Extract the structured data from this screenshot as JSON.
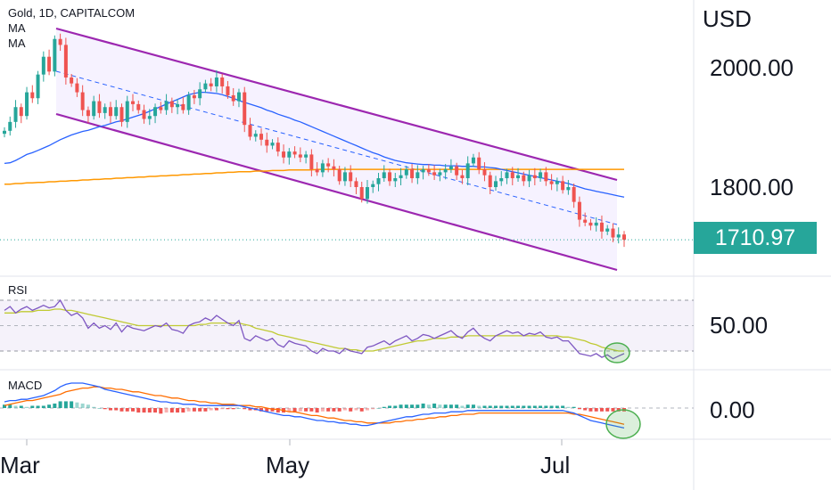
{
  "header": {
    "symbol_line": "Gold, 1D, CAPITALCOM",
    "ma1_label": "MA",
    "ma2_label": "MA"
  },
  "price_axis": {
    "currency": "USD",
    "ticks": [
      "2000.00",
      "1800.00"
    ],
    "last_price": "1710.97"
  },
  "rsi_panel": {
    "label": "RSI",
    "tick": "50.00"
  },
  "macd_panel": {
    "label": "MACD",
    "tick": "0.00"
  },
  "time_axis": {
    "months": [
      "Mar",
      "May",
      "Jul"
    ]
  },
  "colors": {
    "up": "#26a69a",
    "down": "#ef5350",
    "channel": "#9c27b0",
    "ma_fast": "#2962ff",
    "ma_slow": "#ff9800",
    "rsi_line": "#7e57c2",
    "rsi_ma": "#c0ca33",
    "macd_line": "#2962ff",
    "signal_line": "#ff6d00",
    "highlight": "#4caf50",
    "price_badge": "#26a69a"
  },
  "chart_data": [
    {
      "type": "candlestick",
      "title": "Gold, 1D, CAPITALCOM",
      "ylabel": "USD",
      "ylim": [
        1665,
        2085
      ],
      "x_ticks": [
        "Mar",
        "May",
        "Jul"
      ],
      "closes": [
        1895,
        1910,
        1935,
        1920,
        1960,
        1950,
        1990,
        2020,
        1995,
        2050,
        2040,
        1985,
        1975,
        1960,
        1930,
        1920,
        1945,
        1925,
        1935,
        1920,
        1935,
        1910,
        1945,
        1940,
        1930,
        1915,
        1920,
        1935,
        1930,
        1945,
        1935,
        1940,
        1930,
        1955,
        1950,
        1965,
        1975,
        1970,
        1985,
        1970,
        1955,
        1945,
        1960,
        1905,
        1885,
        1890,
        1880,
        1870,
        1875,
        1860,
        1850,
        1860,
        1855,
        1850,
        1855,
        1830,
        1825,
        1840,
        1835,
        1830,
        1810,
        1825,
        1810,
        1800,
        1780,
        1800,
        1805,
        1815,
        1825,
        1810,
        1815,
        1820,
        1830,
        1815,
        1825,
        1830,
        1825,
        1820,
        1825,
        1830,
        1835,
        1820,
        1815,
        1840,
        1850,
        1830,
        1820,
        1800,
        1810,
        1815,
        1825,
        1815,
        1820,
        1810,
        1820,
        1815,
        1825,
        1810,
        1805,
        1810,
        1795,
        1800,
        1775,
        1745,
        1740,
        1735,
        1740,
        1725,
        1730,
        1715,
        1720,
        1711
      ],
      "series": [
        {
          "values": [
            1840,
            1841,
            1845,
            1850,
            1855,
            1858,
            1862,
            1866,
            1870,
            1875,
            1880,
            1884,
            1888,
            1891,
            1894,
            1896,
            1899,
            1902,
            1904,
            1907,
            1910,
            1912,
            1915,
            1918,
            1921,
            1924,
            1928,
            1932,
            1936,
            1940,
            1944,
            1948,
            1952,
            1956,
            1958,
            1960,
            1960,
            1959,
            1958,
            1956,
            1953,
            1950,
            1946,
            1943,
            1940,
            1937,
            1934,
            1930,
            1927,
            1923,
            1920,
            1917,
            1913,
            1910,
            1906,
            1902,
            1898,
            1894,
            1890,
            1886,
            1882,
            1878,
            1874,
            1870,
            1866,
            1862,
            1858,
            1855,
            1851,
            1848,
            1845,
            1843,
            1841,
            1840,
            1839,
            1838,
            1838,
            1837,
            1837,
            1836,
            1836,
            1836,
            1835,
            1835,
            1835,
            1834,
            1834,
            1833,
            1832,
            1830,
            1828,
            1826,
            1824,
            1822,
            1820,
            1818,
            1816,
            1814,
            1812,
            1810,
            1808,
            1806,
            1803,
            1800,
            1797,
            1795,
            1793,
            1791,
            1789,
            1787,
            1785,
            1783
          ]
        },
        {
          "values": [
            1805,
            1805,
            1806,
            1806,
            1807,
            1807,
            1808,
            1808,
            1809,
            1809,
            1810,
            1810,
            1811,
            1811,
            1812,
            1812,
            1813,
            1813,
            1814,
            1814,
            1815,
            1815,
            1816,
            1816,
            1817,
            1817,
            1818,
            1818,
            1819,
            1819,
            1820,
            1820,
            1821,
            1821,
            1822,
            1822,
            1823,
            1823,
            1824,
            1824,
            1825,
            1825,
            1826,
            1826,
            1826,
            1827,
            1827,
            1827,
            1828,
            1828,
            1828,
            1829,
            1829,
            1829,
            1829,
            1829,
            1830,
            1830,
            1830,
            1830,
            1830,
            1830,
            1830,
            1830,
            1830,
            1830,
            1830,
            1830,
            1830,
            1830,
            1830,
            1830,
            1830,
            1830,
            1830,
            1830,
            1830,
            1830,
            1830,
            1830,
            1830,
            1830,
            1830,
            1830,
            1830,
            1830,
            1830,
            1830,
            1830,
            1830,
            1830,
            1830,
            1830,
            1830,
            1830,
            1830,
            1830,
            1830,
            1830,
            1830,
            1830,
            1830,
            1830,
            1830,
            1830,
            1830,
            1830,
            1830,
            1830,
            1830,
            1830,
            1830
          ]
        }
      ]
    },
    {
      "type": "line",
      "title": "RSI",
      "ylim": [
        20,
        80
      ],
      "series": [
        {
          "values": [
            62,
            65,
            60,
            63,
            65,
            62,
            64,
            66,
            64,
            65,
            70,
            62,
            58,
            60,
            56,
            48,
            52,
            48,
            50,
            47,
            52,
            45,
            50,
            48,
            47,
            46,
            48,
            50,
            49,
            52,
            47,
            46,
            44,
            50,
            52,
            53,
            56,
            54,
            58,
            55,
            52,
            50,
            54,
            40,
            38,
            42,
            40,
            38,
            40,
            35,
            33,
            38,
            36,
            35,
            34,
            30,
            28,
            32,
            30,
            30,
            28,
            32,
            30,
            29,
            28,
            33,
            34,
            36,
            38,
            35,
            38,
            40,
            42,
            38,
            40,
            43,
            42,
            40,
            42,
            44,
            46,
            42,
            40,
            45,
            48,
            43,
            40,
            38,
            42,
            44,
            46,
            44,
            45,
            42,
            44,
            43,
            45,
            41,
            40,
            41,
            38,
            38,
            33,
            28,
            27,
            26,
            28,
            25,
            27,
            24,
            26,
            28
          ]
        },
        {
          "values": [
            60,
            60,
            60,
            61,
            61,
            61,
            62,
            62,
            62,
            63,
            63,
            62,
            62,
            61,
            60,
            59,
            58,
            57,
            56,
            55,
            54,
            53,
            52,
            51,
            50,
            50,
            50,
            50,
            50,
            50,
            50,
            50,
            50,
            50,
            50,
            51,
            51,
            52,
            52,
            52,
            52,
            52,
            52,
            51,
            50,
            48,
            47,
            46,
            45,
            43,
            42,
            41,
            40,
            39,
            38,
            37,
            36,
            35,
            34,
            33,
            32,
            32,
            31,
            31,
            30,
            30,
            30,
            31,
            32,
            33,
            34,
            35,
            36,
            37,
            38,
            38,
            39,
            40,
            40,
            40,
            41,
            41,
            41,
            42,
            42,
            42,
            42,
            42,
            42,
            42,
            42,
            42,
            42,
            42,
            42,
            42,
            42,
            42,
            42,
            42,
            41,
            41,
            40,
            39,
            38,
            36,
            35,
            33,
            32,
            31,
            30,
            30
          ]
        }
      ]
    },
    {
      "type": "line",
      "title": "MACD",
      "ylim": [
        -30,
        30
      ],
      "series": [
        {
          "values": [
            5,
            6,
            6,
            7,
            7,
            8,
            9,
            10,
            12,
            14,
            17,
            19,
            20,
            20,
            20,
            19,
            18,
            17,
            15,
            14,
            13,
            12,
            11,
            10,
            9,
            8,
            7,
            6,
            5,
            5,
            4,
            4,
            3,
            3,
            3,
            2,
            2,
            2,
            2,
            2,
            2,
            2,
            2,
            1,
            0,
            -1,
            -2,
            -3,
            -4,
            -5,
            -6,
            -6,
            -7,
            -7,
            -8,
            -9,
            -10,
            -10,
            -11,
            -11,
            -12,
            -12,
            -13,
            -13,
            -14,
            -14,
            -13,
            -12,
            -11,
            -10,
            -9,
            -8,
            -7,
            -7,
            -6,
            -5,
            -5,
            -4,
            -4,
            -4,
            -3,
            -3,
            -3,
            -2,
            -2,
            -2,
            -2,
            -2,
            -2,
            -2,
            -2,
            -2,
            -2,
            -2,
            -2,
            -2,
            -2,
            -2,
            -2,
            -2,
            -2,
            -3,
            -4,
            -6,
            -8,
            -10,
            -11,
            -12,
            -13,
            -14,
            -15,
            -16
          ]
        },
        {
          "values": [
            2,
            3,
            4,
            5,
            6,
            6,
            7,
            8,
            9,
            10,
            11,
            13,
            14,
            15,
            16,
            16,
            17,
            17,
            16,
            16,
            15,
            15,
            14,
            13,
            13,
            12,
            11,
            10,
            10,
            9,
            8,
            8,
            7,
            6,
            6,
            5,
            5,
            4,
            4,
            3,
            3,
            3,
            2,
            2,
            2,
            1,
            1,
            0,
            -1,
            -1,
            -2,
            -3,
            -3,
            -4,
            -5,
            -6,
            -6,
            -7,
            -8,
            -8,
            -9,
            -10,
            -10,
            -11,
            -11,
            -12,
            -12,
            -12,
            -12,
            -12,
            -11,
            -11,
            -10,
            -10,
            -9,
            -9,
            -8,
            -8,
            -7,
            -7,
            -6,
            -6,
            -5,
            -5,
            -5,
            -4,
            -4,
            -4,
            -4,
            -4,
            -4,
            -4,
            -4,
            -4,
            -4,
            -4,
            -4,
            -4,
            -4,
            -4,
            -4,
            -4,
            -5,
            -5,
            -6,
            -7,
            -8,
            -9,
            -10,
            -11,
            -12,
            -13
          ]
        }
      ]
    }
  ]
}
